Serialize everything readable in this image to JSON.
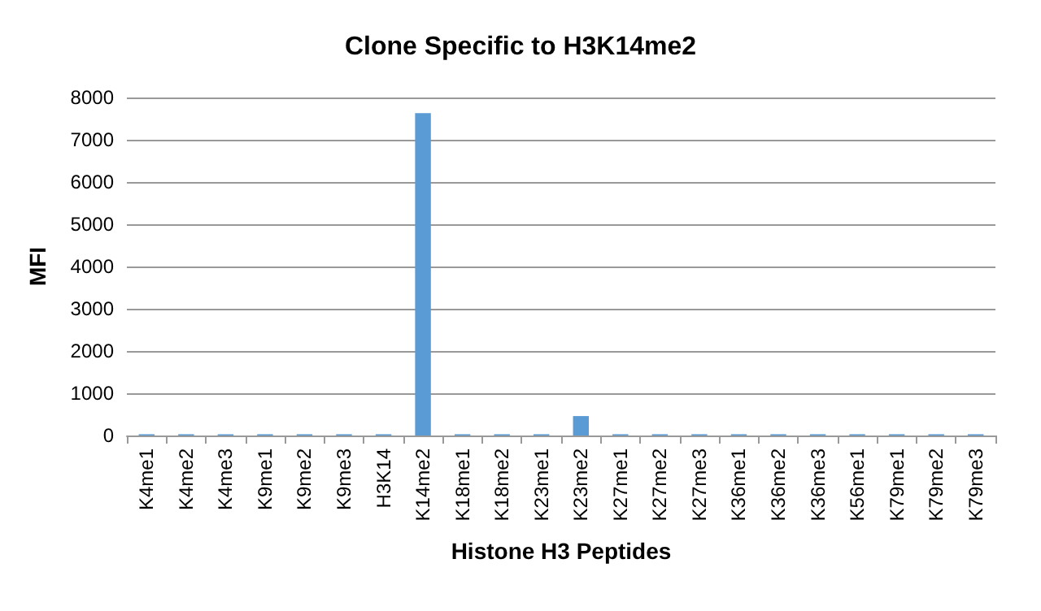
{
  "chart_data": {
    "type": "bar",
    "title": "Clone Specific to H3K14me2",
    "xlabel": "Histone H3 Peptides",
    "ylabel": "MFI",
    "categories": [
      "K4me1",
      "K4me2",
      "K4me3",
      "K9me1",
      "K9me2",
      "K9me3",
      "H3K14",
      "K14me2",
      "K18me1",
      "K18me2",
      "K23me1",
      "K23me2",
      "K27me1",
      "K27me2",
      "K27me3",
      "K36me1",
      "K36me2",
      "K36me3",
      "K56me1",
      "K79me1",
      "K79me2",
      "K79me3"
    ],
    "values": [
      30,
      30,
      30,
      30,
      30,
      30,
      30,
      7630,
      30,
      30,
      30,
      460,
      30,
      30,
      30,
      30,
      30,
      30,
      30,
      30,
      30,
      30
    ],
    "color": "#5b9bd5",
    "ylim": [
      0,
      8000
    ],
    "yticks": [
      0,
      1000,
      2000,
      3000,
      4000,
      5000,
      6000,
      7000,
      8000
    ],
    "grid": "y"
  }
}
